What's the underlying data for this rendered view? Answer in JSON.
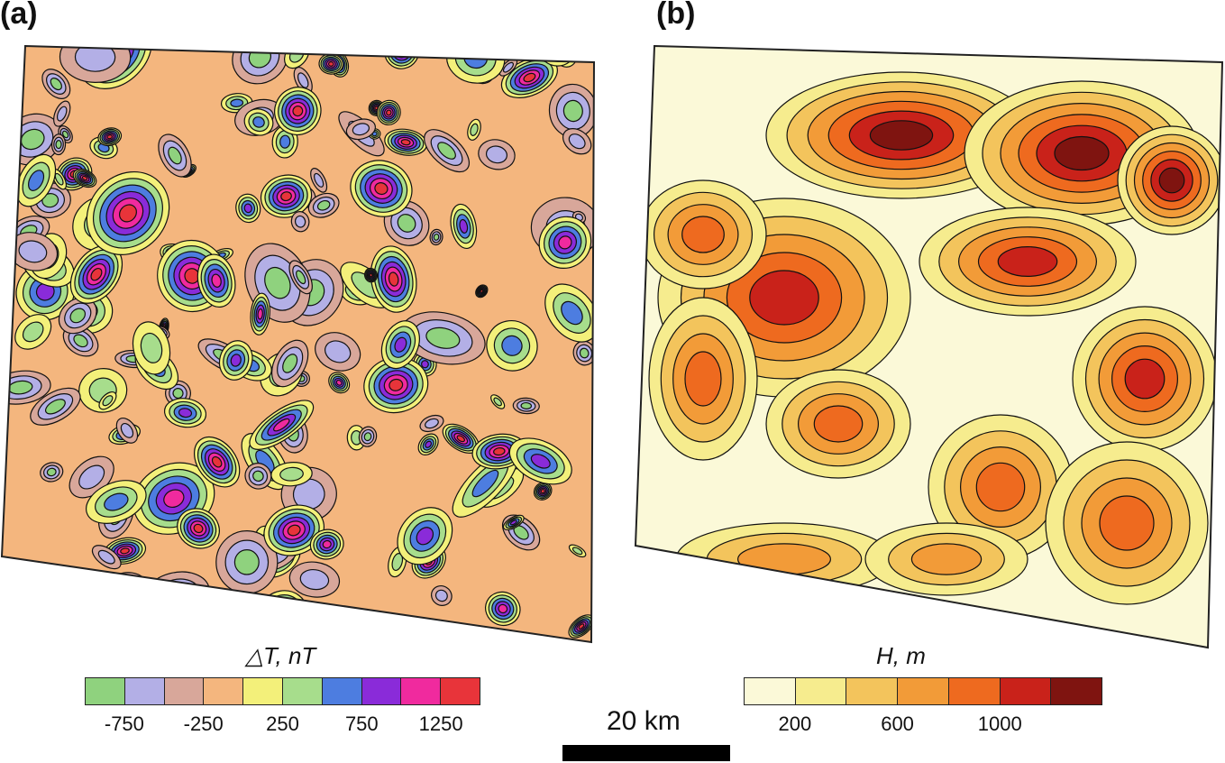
{
  "panels": [
    {
      "id": "a",
      "label": "(a)",
      "legend": {
        "title": "△T, nT",
        "colors": [
          "#8fd27e",
          "#b3afe6",
          "#d8a79a",
          "#f4b67e",
          "#f3f07a",
          "#a7dd8c",
          "#4d7de0",
          "#8a2bd9",
          "#f02a9e",
          "#e8343a"
        ],
        "ticks": [
          "-750",
          "-250",
          "250",
          "750",
          "1250"
        ]
      }
    },
    {
      "id": "b",
      "label": "(b)",
      "legend": {
        "title": "H, m",
        "colors": [
          "#fbf9d8",
          "#f6ec8e",
          "#f3c45c",
          "#f29b38",
          "#ee6a1f",
          "#c9221a",
          "#7f1410"
        ],
        "ticks": [
          "200",
          "600",
          "1000"
        ]
      }
    }
  ],
  "scale": {
    "label": "20 km"
  }
}
